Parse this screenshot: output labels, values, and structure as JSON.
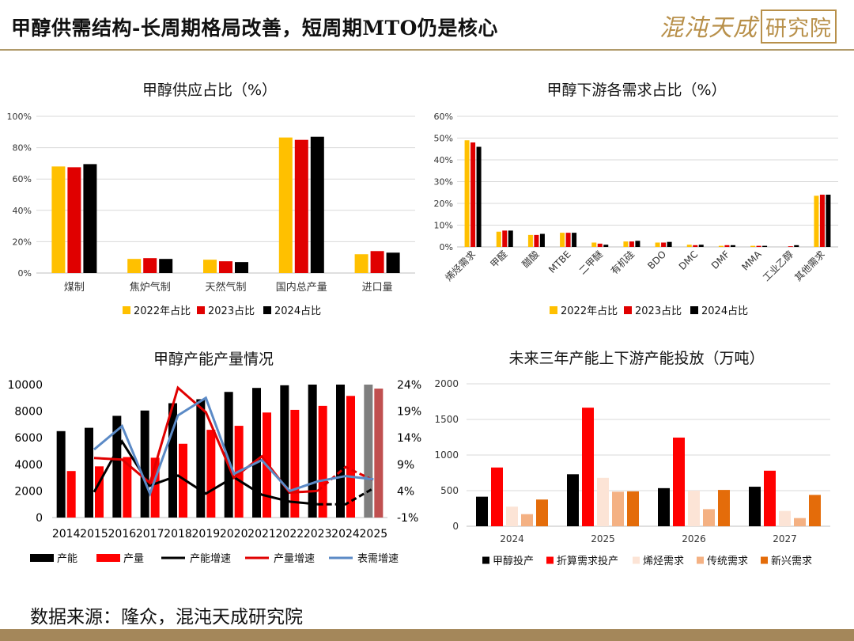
{
  "header": {
    "title": "甲醇供需结构-长周期格局改善，短周期MTO仍是核心"
  },
  "logo": {
    "main": "混沌天成",
    "boxed": "研究院"
  },
  "footer": {
    "source": "数据来源：隆众，混沌天成研究院"
  },
  "colors": {
    "y2022": "#FFC000",
    "y2023": "#E00000",
    "y2024": "#000000"
  },
  "chart_data": [
    {
      "id": "supply",
      "type": "bar",
      "title": "甲醇供应占比（%）",
      "categories": [
        "煤制",
        "焦炉气制",
        "天然气制",
        "国内总产量",
        "进口量"
      ],
      "series": [
        {
          "name": "2022年占比",
          "values": [
            68,
            9,
            8.5,
            86.5,
            12
          ]
        },
        {
          "name": "2023占比",
          "values": [
            67.5,
            9.5,
            7.5,
            85,
            14
          ]
        },
        {
          "name": "2024占比",
          "values": [
            69.5,
            9,
            7,
            87,
            13
          ]
        }
      ],
      "ylim": [
        0,
        100
      ],
      "yticks": [
        "0%",
        "20%",
        "40%",
        "60%",
        "80%",
        "100%"
      ],
      "legend": "bottom"
    },
    {
      "id": "demand",
      "type": "bar",
      "title": "甲醇下游各需求占比（%）",
      "categories": [
        "烯烃需求",
        "甲醛",
        "醋酸",
        "MTBE",
        "二甲醚",
        "有机硅",
        "BDO",
        "DMC",
        "DMF",
        "MMA",
        "工业乙醇",
        "其他需求"
      ],
      "series": [
        {
          "name": "2022年占比",
          "values": [
            49,
            7,
            5.5,
            6.5,
            2,
            2.5,
            2,
            1,
            0.5,
            0.5,
            0,
            23.5
          ]
        },
        {
          "name": "2023占比",
          "values": [
            48,
            7.5,
            5.5,
            6.5,
            1.5,
            2.5,
            2,
            0.8,
            0.8,
            0.5,
            0.3,
            24
          ]
        },
        {
          "name": "2024占比",
          "values": [
            46,
            7.5,
            6,
            6.5,
            1,
            2.8,
            2.3,
            1,
            0.8,
            0.5,
            0.8,
            24
          ]
        }
      ],
      "ylim": [
        0,
        60
      ],
      "yticks": [
        "0%",
        "10%",
        "20%",
        "30%",
        "40%",
        "50%",
        "60%"
      ],
      "legend": "bottom"
    },
    {
      "id": "capacity",
      "type": "bar+line",
      "title": "甲醇产能产量情况",
      "categories": [
        "2014",
        "2015",
        "2016",
        "2017",
        "2018",
        "2019",
        "2020",
        "2021",
        "2022",
        "2023",
        "2024",
        "2025"
      ],
      "bars": [
        {
          "name": "产能",
          "values": [
            6500,
            6750,
            7650,
            8050,
            8600,
            8900,
            9450,
            9750,
            9950,
            10050,
            10050,
            10200
          ]
        },
        {
          "name": "产量",
          "values": [
            3500,
            3850,
            4550,
            4500,
            5550,
            6600,
            6900,
            7900,
            8100,
            8400,
            9150,
            9700
          ]
        }
      ],
      "lines": [
        {
          "name": "产能增速",
          "values": [
            null,
            3.8,
            13.3,
            5.0,
            6.9,
            3.5,
            6.6,
            3.3,
            2.0,
            1.5,
            1.5,
            4.5
          ],
          "dashed_from": "2023"
        },
        {
          "name": "产量增速",
          "values": [
            null,
            10.2,
            9.9,
            5.5,
            23.4,
            18.8,
            6.5,
            10.5,
            3.7,
            4.0,
            8.5,
            6.0
          ],
          "dashed_from": "2023"
        },
        {
          "name": "表需增速",
          "values": [
            null,
            11.8,
            16.2,
            3.5,
            18.2,
            21.5,
            7.2,
            9.8,
            4.0,
            5.8,
            6.8,
            6.2
          ]
        }
      ],
      "ylim_left": [
        0,
        10000
      ],
      "yticks_left": [
        "0",
        "2000",
        "4000",
        "6000",
        "8000",
        "10000"
      ],
      "ylim_right": [
        -1,
        24
      ],
      "yticks_right": [
        "-1%",
        "4%",
        "9%",
        "14%",
        "19%",
        "24%"
      ],
      "legend": "bottom"
    },
    {
      "id": "future",
      "type": "bar",
      "title": "未来三年产能上下游产能投放（万吨）",
      "categories": [
        "2024",
        "2025",
        "2026",
        "2027"
      ],
      "series": [
        {
          "name": "甲醇投产",
          "values": [
            415,
            730,
            535,
            555
          ]
        },
        {
          "name": "折算需求投产",
          "values": [
            825,
            1665,
            1245,
            780
          ]
        },
        {
          "name": "烯烃需求",
          "values": [
            275,
            680,
            500,
            215
          ]
        },
        {
          "name": "传统需求",
          "values": [
            170,
            485,
            240,
            115
          ]
        },
        {
          "name": "新兴需求",
          "values": [
            375,
            490,
            510,
            440
          ]
        }
      ],
      "ylim": [
        0,
        2000
      ],
      "yticks": [
        "0",
        "500",
        "1000",
        "1500",
        "2000"
      ],
      "legend": "bottom"
    }
  ]
}
